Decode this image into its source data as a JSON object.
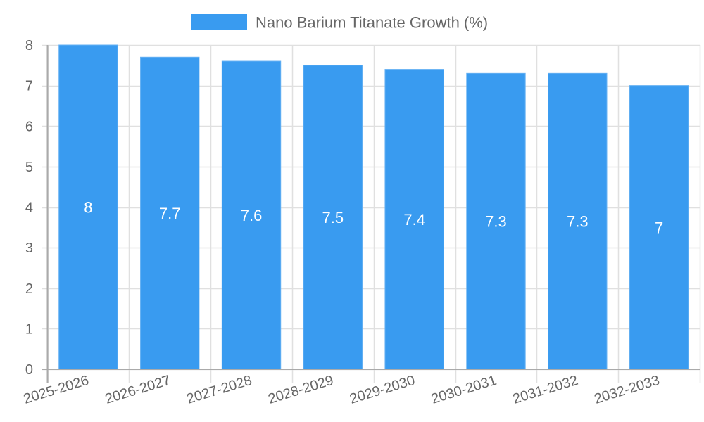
{
  "legend": {
    "label": "Nano Barium Titanate Growth (%)",
    "color": "#399bf0"
  },
  "colors": {
    "bar": "#399bf0",
    "bar_border": "#64b0f3",
    "grid": "#e0e0e0",
    "axis": "#aaaaaa",
    "tick_text": "#666666",
    "data_label": "#ffffff"
  },
  "chart_data": {
    "type": "bar",
    "title": "",
    "categories": [
      "2025-2026",
      "2026-2027",
      "2027-2028",
      "2028-2029",
      "2029-2030",
      "2030-2031",
      "2031-2032",
      "2032-2033"
    ],
    "series": [
      {
        "name": "Nano Barium Titanate Growth (%)",
        "values": [
          8,
          7.7,
          7.6,
          7.5,
          7.4,
          7.3,
          7.3,
          7
        ]
      }
    ],
    "values": [
      8,
      7.7,
      7.6,
      7.5,
      7.4,
      7.3,
      7.3,
      7
    ],
    "data_labels": [
      "8",
      "7.7",
      "7.6",
      "7.5",
      "7.4",
      "7.3",
      "7.3",
      "7"
    ],
    "xlabel": "",
    "ylabel": "",
    "ylim": [
      0,
      8
    ],
    "yticks": [
      "0",
      "1",
      "2",
      "3",
      "4",
      "5",
      "6",
      "7",
      "8"
    ],
    "grid": true,
    "legend_position": "top"
  }
}
